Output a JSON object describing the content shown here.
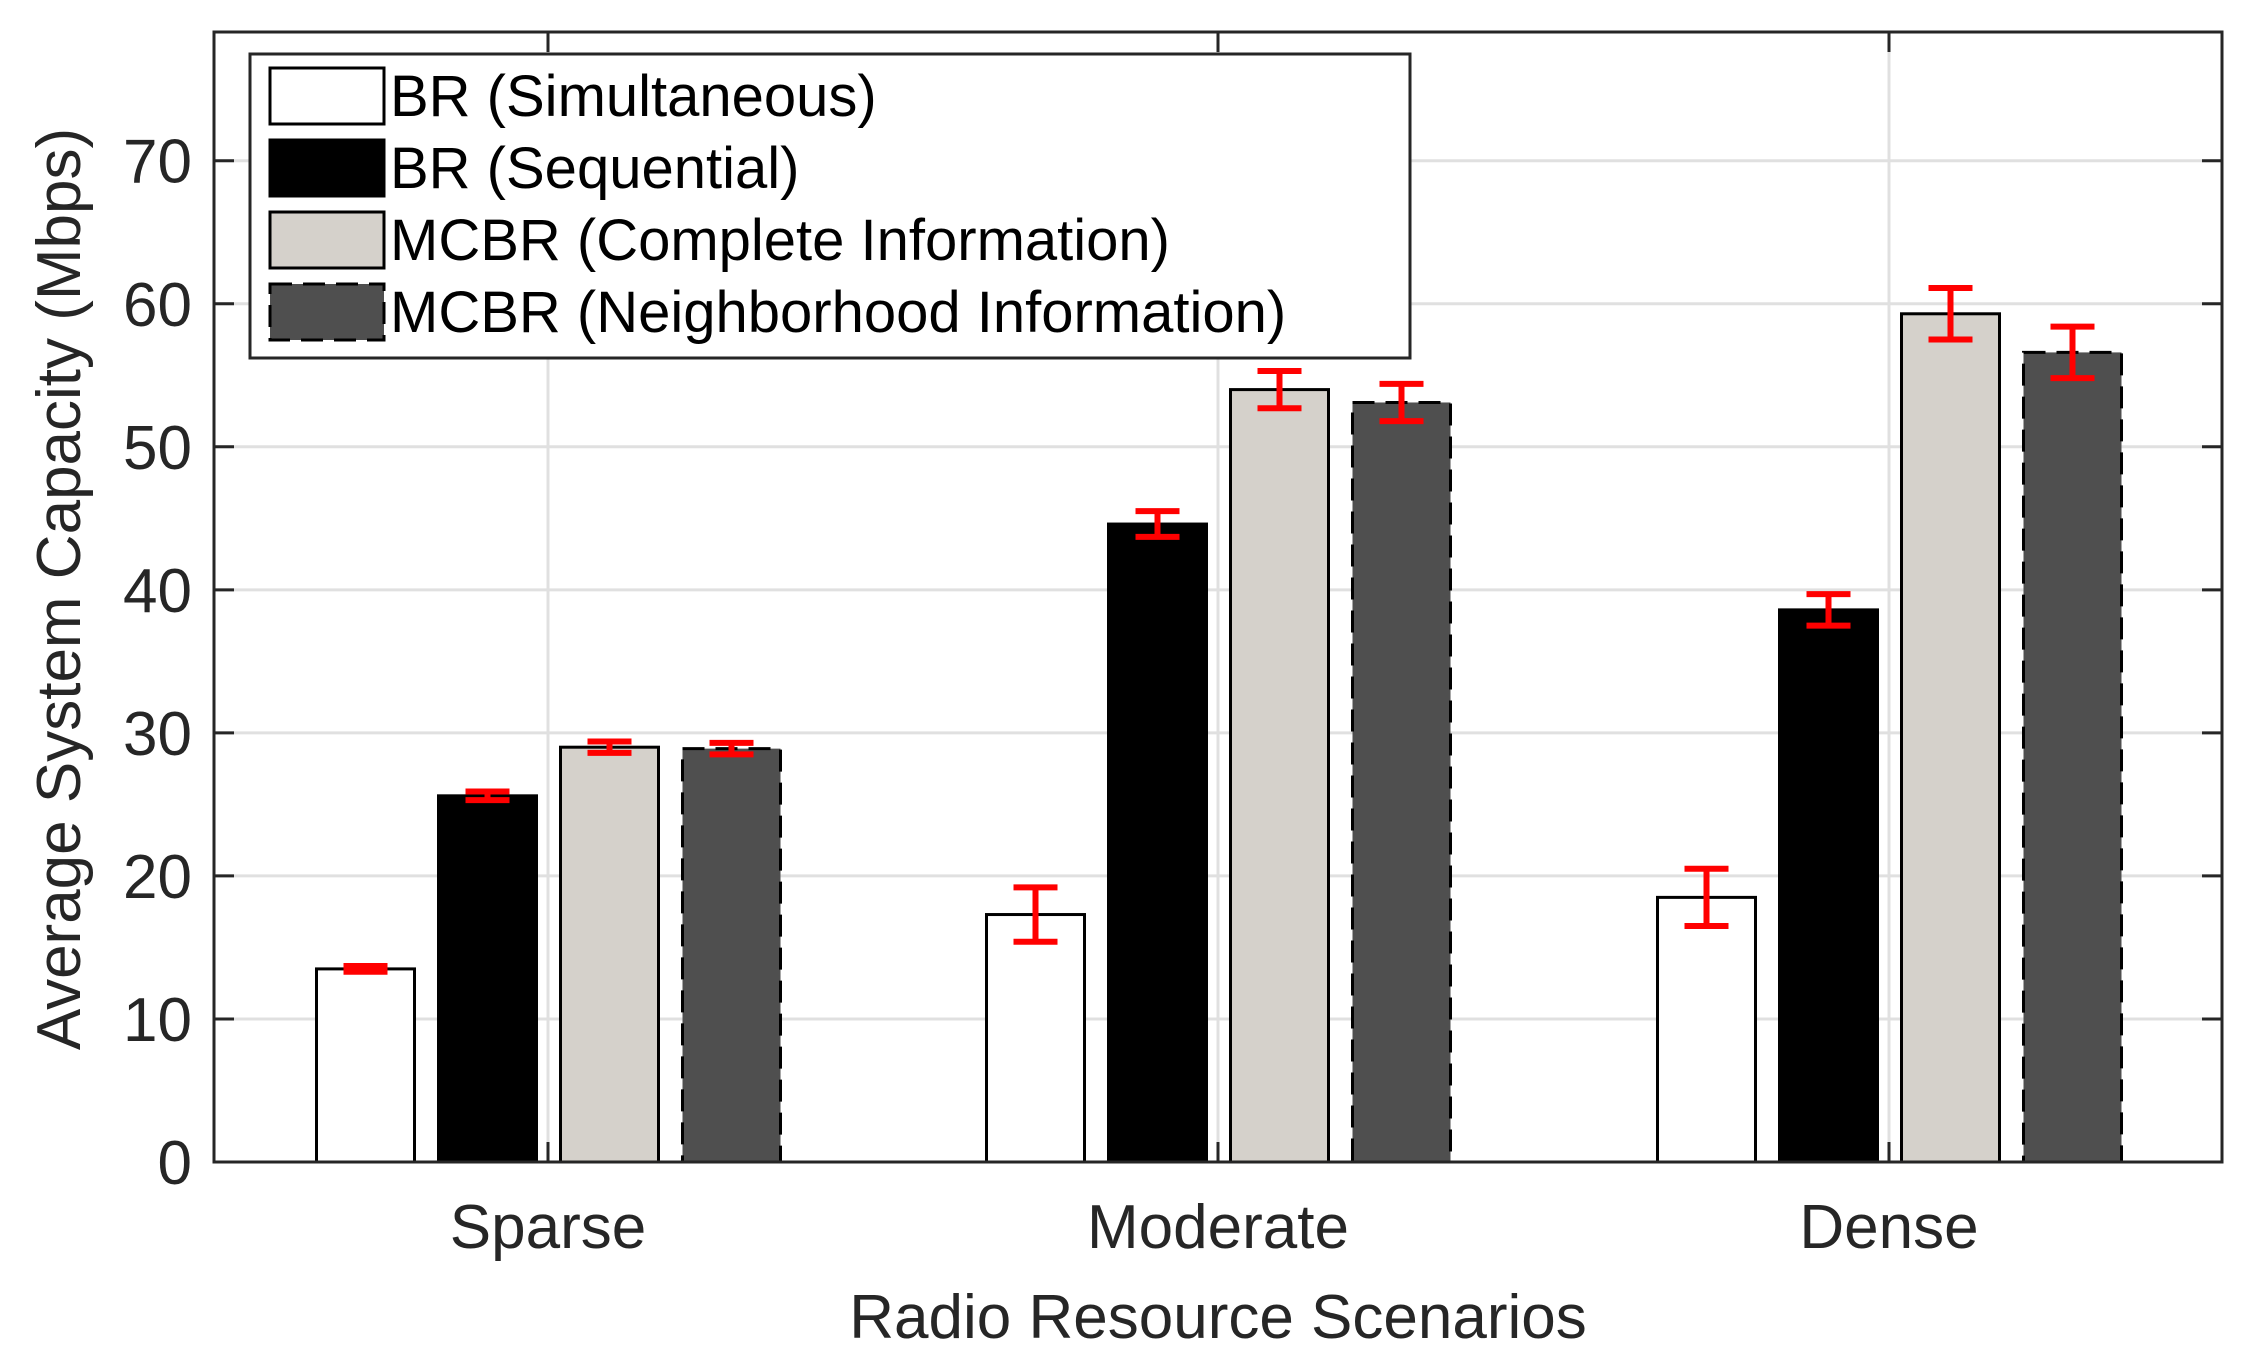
{
  "chart_data": {
    "type": "bar",
    "title": "",
    "xlabel": "Radio Resource Scenarios",
    "ylabel": "Average System Capacity (Mbps)",
    "categories": [
      "Sparse",
      "Moderate",
      "Dense"
    ],
    "ylim": [
      0,
      79
    ],
    "yticks": [
      0,
      10,
      20,
      30,
      40,
      50,
      60,
      70
    ],
    "grid": true,
    "legend_position": "top-left",
    "series": [
      {
        "name": "BR (Simultaneous)",
        "values": [
          13.5,
          17.3,
          18.5
        ],
        "errors": [
          0.2,
          1.9,
          2.0
        ],
        "color": "#ffffff",
        "edge": "solid"
      },
      {
        "name": "BR (Sequential)",
        "values": [
          25.6,
          44.6,
          38.6
        ],
        "errors": [
          0.3,
          0.9,
          1.1
        ],
        "color": "#000000",
        "edge": "solid"
      },
      {
        "name": "MCBR (Complete Information)",
        "values": [
          29.0,
          54.0,
          59.3
        ],
        "errors": [
          0.4,
          1.3,
          1.8
        ],
        "color": "#d5d1cb",
        "edge": "solid"
      },
      {
        "name": "MCBR (Neighborhood Information)",
        "values": [
          28.9,
          53.1,
          56.6
        ],
        "errors": [
          0.4,
          1.3,
          1.8
        ],
        "color": "#4f4f4f",
        "edge": "dashed"
      }
    ],
    "error_bar_color": "#ff0000"
  }
}
